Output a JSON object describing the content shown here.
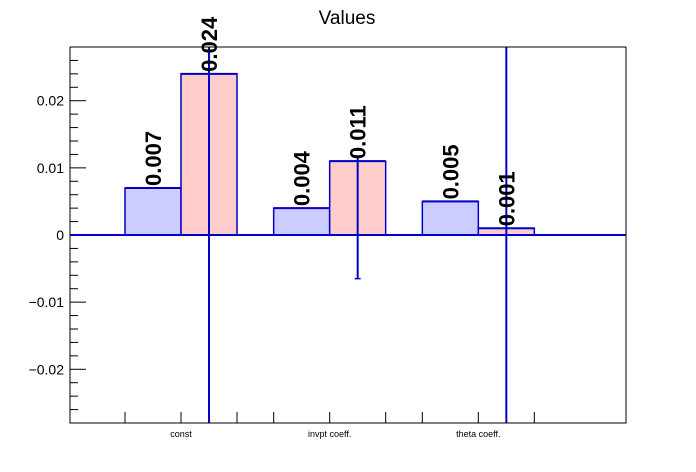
{
  "chart_data": {
    "type": "bar",
    "title": "Values",
    "categories": [
      "const",
      "invpt coeff.",
      "theta coeff."
    ],
    "series": [
      {
        "values": [
          0.007,
          0.004,
          0.005
        ],
        "value_labels": [
          "0.007",
          "0.004",
          "0.005"
        ],
        "fill": "#ccccff",
        "stroke": "#0000cc"
      },
      {
        "values": [
          0.024,
          0.011,
          0.001
        ],
        "value_labels": [
          "0.024",
          "0.011",
          "0.001"
        ],
        "fill": "#ffcccc",
        "stroke": "#0000cc",
        "error_low": [
          -0.028,
          -0.0065,
          -0.028
        ],
        "error_high": [
          0.028,
          0.0115,
          0.028
        ]
      }
    ],
    "ylim": [
      -0.028,
      0.028
    ],
    "yticks": [
      -0.02,
      -0.01,
      0,
      0.01,
      0.02
    ],
    "ytick_labels": [
      "−0.02",
      "−0.01",
      "0",
      "0.01",
      "0.02"
    ],
    "xlabel": "",
    "ylabel": "",
    "zero_line_color": "#0000cc",
    "grid": false,
    "legend": "none"
  }
}
